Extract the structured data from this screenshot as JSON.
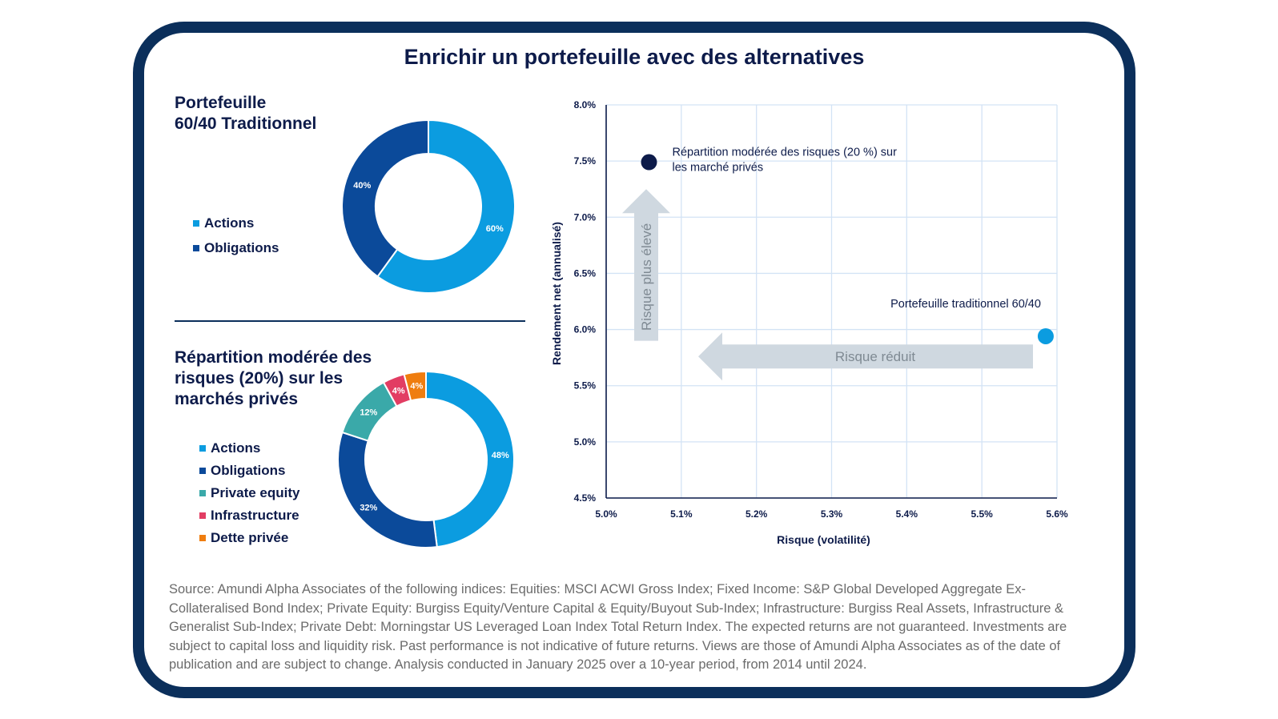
{
  "title": "Enrichir un portefeuille avec des alternatives",
  "donut1": {
    "title_line1": "Portefeuille",
    "title_line2": "60/40 Traditionnel",
    "legend": [
      {
        "label": "Actions",
        "color": "#0b9ce0"
      },
      {
        "label": "Obligations",
        "color": "#0b4a9a"
      }
    ]
  },
  "donut2": {
    "title_line1": "Répartition modérée des",
    "title_line2": "risques  (20%) sur les",
    "title_line3": "marchés privés",
    "legend": [
      {
        "label": "Actions",
        "color": "#0b9ce0"
      },
      {
        "label": "Obligations",
        "color": "#0b4a9a"
      },
      {
        "label": "Private equity",
        "color": "#3aa9a9"
      },
      {
        "label": "Infrastructure",
        "color": "#e23d63"
      },
      {
        "label": "Dette privée",
        "color": "#ef7d0f"
      }
    ]
  },
  "chart_data": [
    {
      "type": "pie",
      "name": "donut-traditional",
      "categories": [
        "Actions",
        "Obligations"
      ],
      "values": [
        60,
        40
      ],
      "labels": [
        "60%",
        "40%"
      ],
      "colors": [
        "#0b9ce0",
        "#0b4a9a"
      ]
    },
    {
      "type": "pie",
      "name": "donut-private",
      "categories": [
        "Actions",
        "Obligations",
        "Private equity",
        "Infrastructure",
        "Dette privée"
      ],
      "values": [
        48,
        32,
        12,
        4,
        4
      ],
      "labels": [
        "48%",
        "32%",
        "12%",
        "4%",
        "4%"
      ],
      "colors": [
        "#0b9ce0",
        "#0b4a9a",
        "#3aa9a9",
        "#e23d63",
        "#ef7d0f"
      ]
    },
    {
      "type": "scatter",
      "name": "risk-return",
      "xlabel": "Risque (volatilité)",
      "ylabel": "Rendement net (annualisé)",
      "xlim": [
        5.0,
        5.6
      ],
      "ylim": [
        4.5,
        8.0
      ],
      "xticks": [
        "5.0%",
        "5.1%",
        "5.2%",
        "5.3%",
        "5.4%",
        "5.5%",
        "5.6%"
      ],
      "yticks": [
        "4.5%",
        "5.0%",
        "5.5%",
        "6.0%",
        "6.5%",
        "7.0%",
        "7.5%",
        "8.0%"
      ],
      "grid": true,
      "points": [
        {
          "x": 5.057,
          "y": 7.49,
          "label_line1": "Répartition modérée des risques (20 %) sur",
          "label_line2": "les marché privés",
          "color": "#0d1b4a"
        },
        {
          "x": 5.585,
          "y": 5.94,
          "label_line1": "Portefeuille traditionnel 60/40",
          "label_line2": "",
          "color": "#0b9ce0"
        }
      ],
      "arrows": [
        {
          "label": "Risque plus élevé",
          "direction": "up"
        },
        {
          "label": "Risque réduit",
          "direction": "left"
        }
      ]
    }
  ],
  "source": "Source: Amundi Alpha Associates of the following indices: Equities: MSCI ACWI Gross Index; Fixed Income: S&P Global Developed Aggregate Ex-Collateralised Bond Index; Private Equity: Burgiss Equity/Venture Capital & Equity/Buyout Sub-Index; Infrastructure: Burgiss Real Assets, Infrastructure & Generalist Sub-Index; Private Debt: Morningstar US Leveraged Loan Index Total Return Index. The expected returns are not guaranteed. Investments are subject to capital loss and liquidity risk. Past performance is not indicative of future returns. Views are those of Amundi Alpha Associates as of the date of publication and are subject to change. Analysis conducted in January 2025 over a 10-year period, from 2014 until 2024."
}
